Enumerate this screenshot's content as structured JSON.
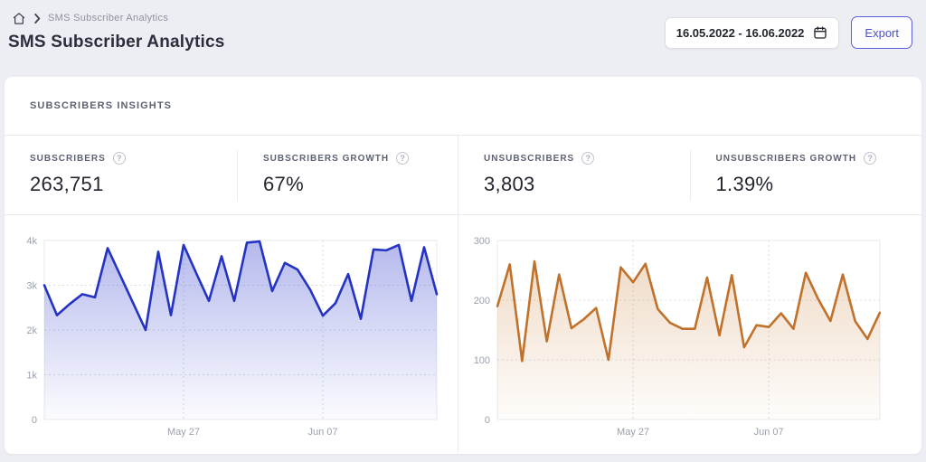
{
  "breadcrumb": {
    "current": "SMS Subscriber Analytics"
  },
  "header": {
    "title": "SMS Subscriber Analytics",
    "date_range": "16.05.2022 - 16.06.2022",
    "export_label": "Export"
  },
  "icons": {
    "help": "?"
  },
  "insights": {
    "section_title": "SUBSCRIBERS INSIGHTS",
    "stats": [
      {
        "label": "SUBSCRIBERS",
        "value": "263,751"
      },
      {
        "label": "SUBSCRIBERS GROWTH",
        "value": "67%"
      },
      {
        "label": "UNSUBSCRIBERS",
        "value": "3,803"
      },
      {
        "label": "UNSUBSCRIBERS GROWTH",
        "value": "1.39%"
      }
    ]
  },
  "chart_data": [
    {
      "type": "area",
      "name": "Subscribers",
      "values": [
        3000,
        2330,
        2580,
        2800,
        2730,
        3830,
        3220,
        2610,
        2000,
        3750,
        2330,
        3900,
        3270,
        2650,
        3650,
        2650,
        3950,
        3980,
        2870,
        3500,
        3350,
        2900,
        2320,
        2600,
        3250,
        2250,
        3800,
        3780,
        3900,
        2650,
        3850,
        2800
      ],
      "ylim": [
        0,
        4000
      ],
      "yticks": [
        {
          "value": 0,
          "label": "0"
        },
        {
          "value": 1000,
          "label": "1k"
        },
        {
          "value": 2000,
          "label": "2k"
        },
        {
          "value": 3000,
          "label": "3k"
        },
        {
          "value": 4000,
          "label": "4k"
        }
      ],
      "xticks": [
        {
          "index": 11,
          "label": "May 27"
        },
        {
          "index": 22,
          "label": "Jun 07"
        }
      ],
      "grid": "dashed",
      "legend": "none",
      "line_color": "#2433c4",
      "fill_top": "rgba(57,70,205,0.38)",
      "fill_bottom": "rgba(57,70,205,0.02)"
    },
    {
      "type": "area",
      "name": "Unsubscribers",
      "values": [
        190,
        260,
        98,
        265,
        131,
        243,
        153,
        168,
        187,
        100,
        255,
        230,
        261,
        185,
        162,
        152,
        152,
        238,
        141,
        242,
        121,
        158,
        155,
        178,
        152,
        246,
        202,
        165,
        243,
        165,
        135,
        179
      ],
      "ylim": [
        0,
        300
      ],
      "yticks": [
        {
          "value": 0,
          "label": "0"
        },
        {
          "value": 100,
          "label": "100"
        },
        {
          "value": 200,
          "label": "200"
        },
        {
          "value": 300,
          "label": "300"
        }
      ],
      "xticks": [
        {
          "index": 11,
          "label": "May 27"
        },
        {
          "index": 22,
          "label": "Jun 07"
        }
      ],
      "grid": "dashed",
      "legend": "none",
      "line_color": "#c0722c",
      "fill_top": "rgba(199,124,50,0.30)",
      "fill_bottom": "rgba(199,124,50,0.02)"
    }
  ]
}
